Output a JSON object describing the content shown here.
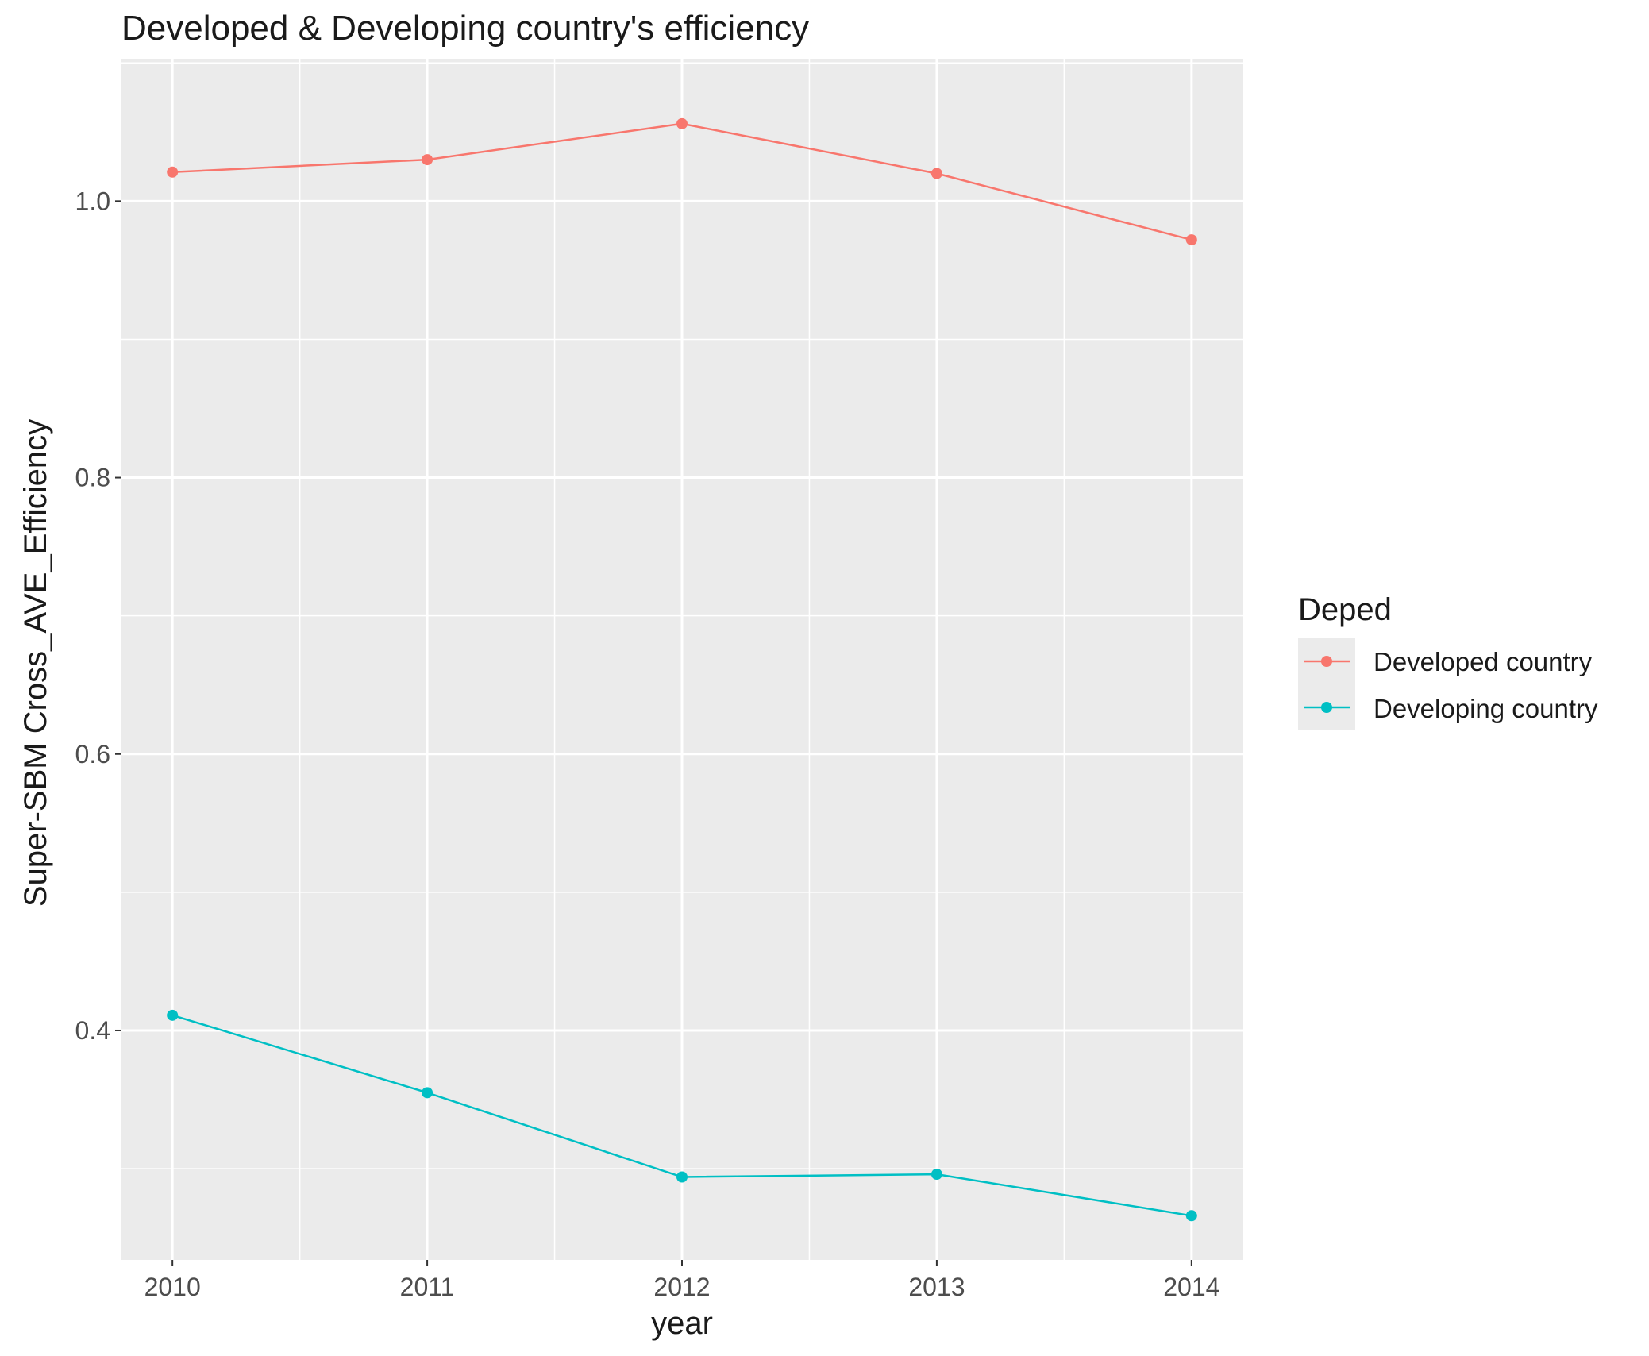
{
  "chart_data": {
    "type": "line",
    "title": "Developed & Developing country's efficiency",
    "xlabel": "year",
    "ylabel": "Super-SBM Cross_AVE_Efficiency",
    "x": [
      2010,
      2011,
      2012,
      2013,
      2014
    ],
    "x_tick_labels": [
      "2010",
      "2011",
      "2012",
      "2013",
      "2014"
    ],
    "y_ticks": [
      0.4,
      0.6,
      0.8,
      1.0
    ],
    "y_tick_labels": [
      "0.4",
      "0.6",
      "0.8",
      "1.0"
    ],
    "ylim": [
      0.234,
      1.103
    ],
    "xlim": [
      2009.8,
      2014.2
    ],
    "grid": true,
    "legend": {
      "title": "Deped",
      "position": "right"
    },
    "series": [
      {
        "name": "Developed country",
        "color": "#F8766D",
        "values": [
          1.021,
          1.03,
          1.056,
          1.02,
          0.972
        ]
      },
      {
        "name": "Developing country",
        "color": "#00BFC4",
        "values": [
          0.411,
          0.355,
          0.294,
          0.296,
          0.266
        ]
      }
    ]
  }
}
